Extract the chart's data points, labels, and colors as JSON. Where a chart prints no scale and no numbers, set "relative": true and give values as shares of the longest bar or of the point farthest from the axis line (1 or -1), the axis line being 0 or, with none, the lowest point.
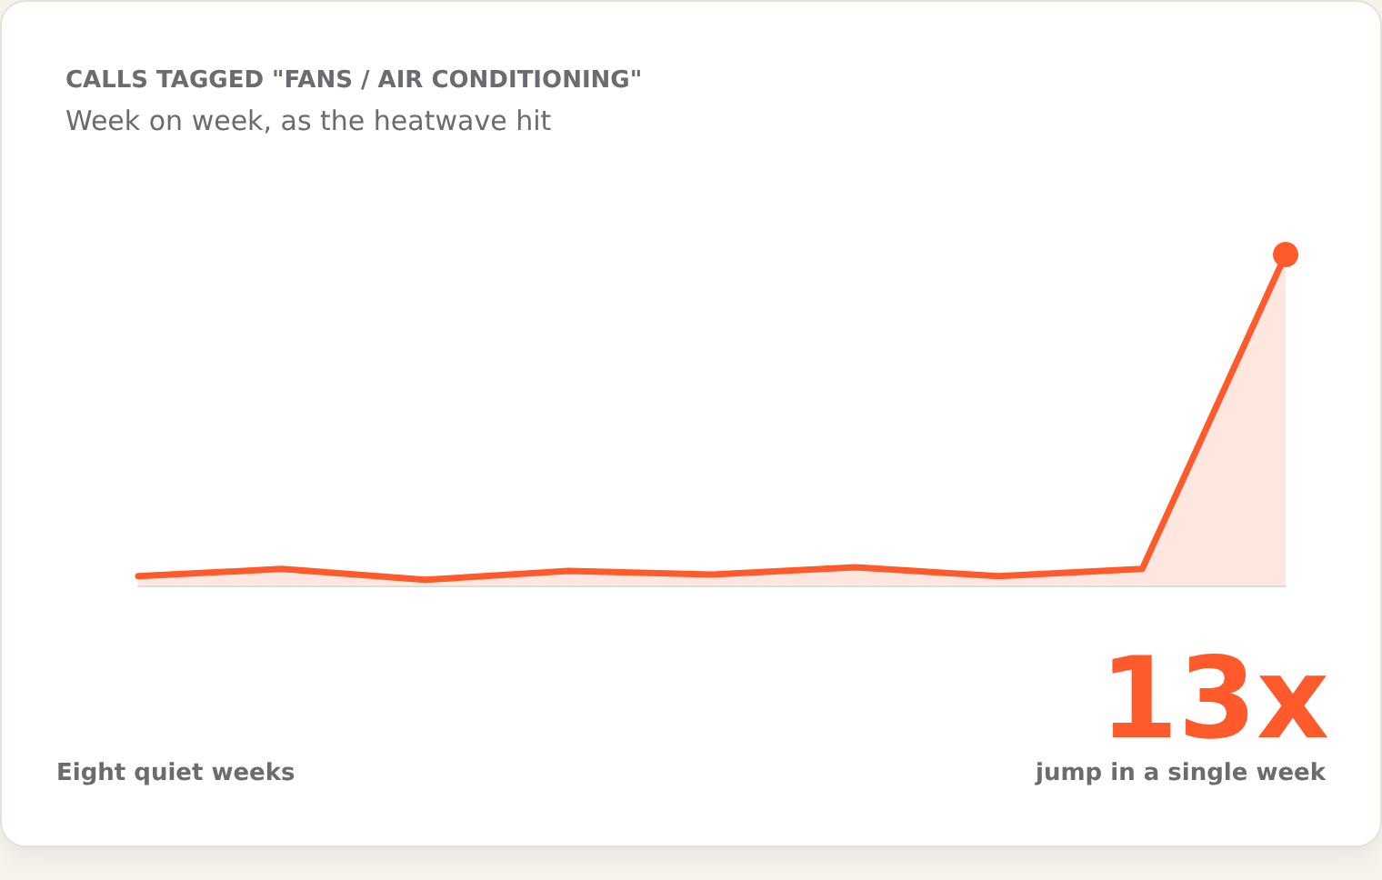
{
  "chart_data": {
    "type": "area",
    "title": "CALLS TAGGED \"FANS / AIR CONDITIONING\"",
    "subtitle": "Week on week, as the heatwave hit",
    "categories": [
      null,
      null,
      null,
      null,
      null,
      null,
      null,
      null,
      null
    ],
    "relative": true,
    "series": [
      {
        "color": "#ff5a2b",
        "values": [
          0.028,
          0.05,
          0.017,
          0.044,
          0.033,
          0.055,
          0.028,
          0.05,
          1
        ]
      }
    ],
    "annotations": [
      "13x",
      "Eight quiet weeks",
      "jump in a single week"
    ],
    "line_style": "solid"
  }
}
